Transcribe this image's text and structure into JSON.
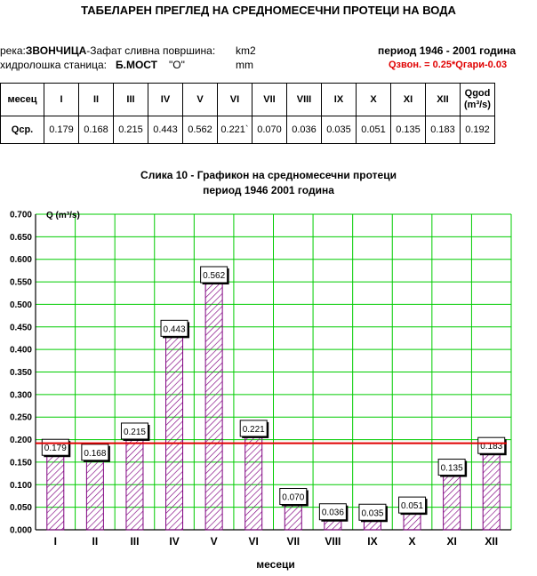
{
  "header": {
    "title": "ТАБЕЛАРЕН ПРЕГЛЕД НА СРЕДНОМЕСЕЧНИ ПРОТЕЦИ НА ВОДА",
    "river_prefix": "река:",
    "river_name": "ЗВОНЧИЦА",
    "river_suffix": "-Зафат сливна површина:",
    "area_unit": "km2",
    "station_prefix": "хидролошка станица:",
    "station_name": "Б.МОСТ",
    "station_code": "\"O\"",
    "rain_unit": "mm",
    "period": "период 1946 - 2001 година",
    "formula": "Qзвон. = 0.25*Qгари-0.03"
  },
  "table": {
    "row_header": "месец",
    "months": [
      "I",
      "II",
      "III",
      "IV",
      "V",
      "VI",
      "VII",
      "VIII",
      "IX",
      "X",
      "XI",
      "XII"
    ],
    "annual_label": "Qgod",
    "annual_unit": "(m³/s)",
    "value_label": "Qср.",
    "values": [
      "0.179",
      "0.168",
      "0.215",
      "0.443",
      "0.562",
      "0.221`",
      "0.070",
      "0.036",
      "0.035",
      "0.051",
      "0.135",
      "0.183"
    ],
    "annual_value": "0.192"
  },
  "chart_data": {
    "type": "bar",
    "title": "Слика 10 - Графикон на средномесечни протеци",
    "subtitle": "период 1946 2001 година",
    "xlabel": "месеци",
    "ylabel": "Q (m³/s)",
    "ylim": [
      0,
      0.7
    ],
    "ytick_step": 0.05,
    "grid": true,
    "categories": [
      "I",
      "II",
      "III",
      "IV",
      "V",
      "VI",
      "VII",
      "VIII",
      "IX",
      "X",
      "XI",
      "XII"
    ],
    "values": [
      0.179,
      0.168,
      0.215,
      0.443,
      0.562,
      0.221,
      0.07,
      0.036,
      0.035,
      0.051,
      0.135,
      0.183
    ],
    "data_labels": [
      "0.179",
      "0.168",
      "0.215",
      "0.443",
      "0.562",
      "0.221",
      "0.070",
      "0.036",
      "0.035",
      "0.051",
      "0.135",
      "0.183"
    ],
    "reference_line": 0.192,
    "colors": {
      "grid": "#00cc00",
      "bar": "#800080",
      "reference": "#e00000"
    }
  }
}
